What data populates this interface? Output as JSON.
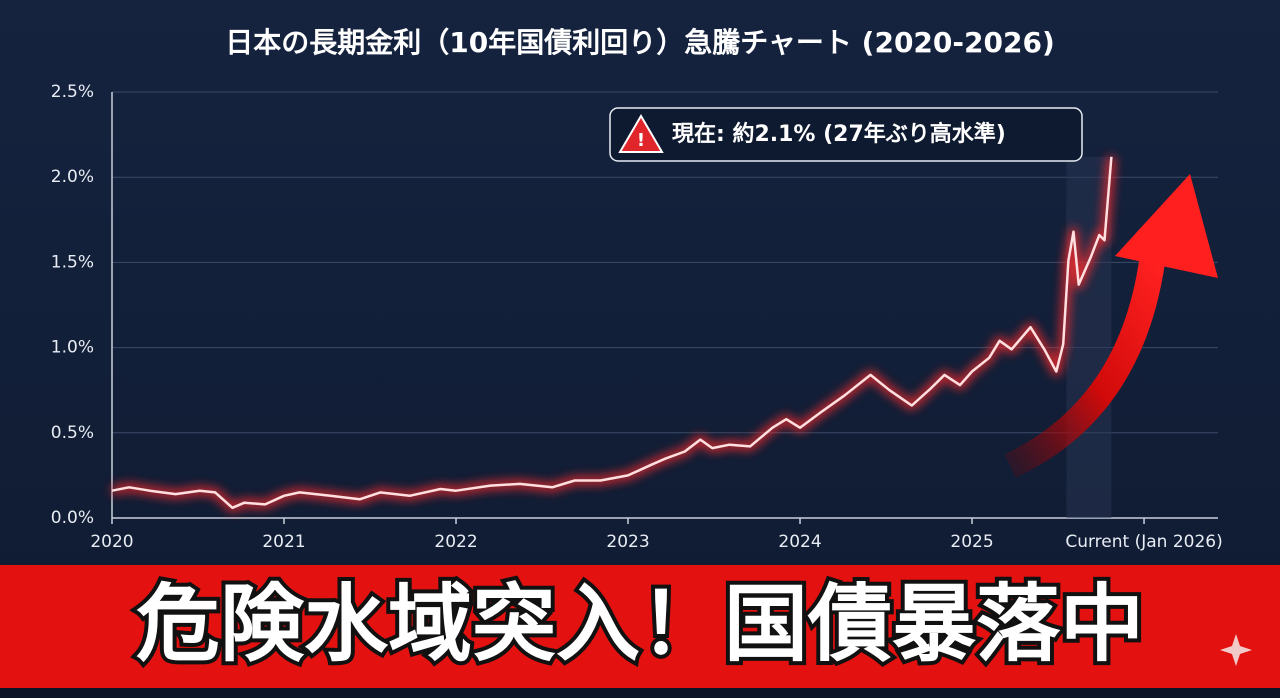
{
  "chart_data": {
    "type": "line",
    "title": "日本の長期金利（10年国債利回り）急騰チャート (2020-2026)",
    "annotation": "現在: 約2.1% (27年ぶり高水準)",
    "banner": "危険水域突入！国債暴落中",
    "color": "#ff2a2a",
    "grid": true,
    "xlim": [
      2020,
      2026.43
    ],
    "xticks": [
      2020,
      2021,
      2022,
      2023,
      2024,
      2025,
      {
        "value": 2026,
        "label": "Current (Jan 2026)"
      }
    ],
    "ylim": [
      0,
      2.5
    ],
    "yticks": [
      {
        "value": 0,
        "label": "0.0%"
      },
      {
        "value": 0.5,
        "label": "0.5%"
      },
      {
        "value": 1,
        "label": "1.0%"
      },
      {
        "value": 1.5,
        "label": "1.5%"
      },
      {
        "value": 2,
        "label": "2.0%"
      },
      {
        "value": 2.5,
        "label": "2.5%"
      }
    ],
    "x": [
      2020.0,
      2020.1,
      2020.22,
      2020.37,
      2020.51,
      2020.6,
      2020.7,
      2020.77,
      2020.89,
      2021.0,
      2021.09,
      2021.27,
      2021.44,
      2021.56,
      2021.73,
      2021.91,
      2022.0,
      2022.2,
      2022.37,
      2022.56,
      2022.69,
      2022.84,
      2023.0,
      2023.13,
      2023.22,
      2023.33,
      2023.42,
      2023.49,
      2023.59,
      2023.71,
      2023.84,
      2023.92,
      2024.0,
      2024.12,
      2024.26,
      2024.41,
      2024.52,
      2024.65,
      2024.76,
      2024.84,
      2024.93,
      2025.0,
      2025.1,
      2025.16,
      2025.23,
      2025.34,
      2025.42,
      2025.49,
      2025.53,
      2025.56,
      2025.59,
      2025.62,
      2025.69,
      2025.74,
      2025.77,
      2025.81
    ],
    "values": [
      0.16,
      0.18,
      0.16,
      0.14,
      0.16,
      0.15,
      0.06,
      0.09,
      0.08,
      0.13,
      0.15,
      0.13,
      0.11,
      0.15,
      0.13,
      0.17,
      0.16,
      0.19,
      0.2,
      0.18,
      0.22,
      0.22,
      0.25,
      0.31,
      0.35,
      0.39,
      0.46,
      0.41,
      0.43,
      0.42,
      0.53,
      0.58,
      0.53,
      0.62,
      0.72,
      0.84,
      0.75,
      0.66,
      0.76,
      0.84,
      0.78,
      0.86,
      0.94,
      1.04,
      0.99,
      1.12,
      0.99,
      0.86,
      1.02,
      1.51,
      1.68,
      1.37,
      1.53,
      1.66,
      1.63,
      2.12
    ]
  }
}
